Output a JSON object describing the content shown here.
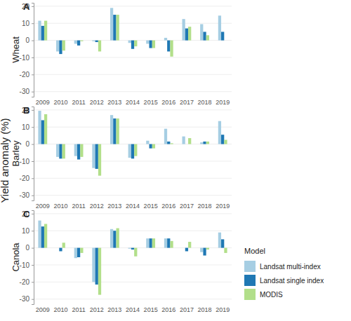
{
  "ylabel": "Yield anomaly (%)",
  "legend_title": "Model",
  "chart_data": [
    {
      "type": "bar",
      "title": "A",
      "ylabel": "Wheat",
      "categories": [
        "2009",
        "2010",
        "2011",
        "2012",
        "2013",
        "2014",
        "2015",
        "2016",
        "2017",
        "2018",
        "2019"
      ],
      "series": [
        {
          "name": "Landsat multi-index",
          "color": "#a6cee3",
          "values": [
            11.5,
            -6.5,
            -2,
            -0.5,
            19,
            -1.5,
            -2,
            1.5,
            12.5,
            9.5,
            14.5
          ]
        },
        {
          "name": "Landsat single index",
          "color": "#1f78b4",
          "values": [
            8.5,
            -8,
            -3,
            -1,
            15,
            -5,
            -4.5,
            -6.5,
            7,
            5,
            5
          ]
        },
        {
          "name": "MODIS",
          "color": "#b2df8a",
          "values": [
            11.5,
            -6,
            -0.5,
            -6.5,
            15,
            -3.5,
            -4.5,
            -9.5,
            8,
            3,
            0
          ]
        }
      ],
      "ylim": [
        -33,
        22
      ],
      "yticks": [
        -30,
        -20,
        -10,
        0,
        10,
        20
      ],
      "grid": true
    },
    {
      "type": "bar",
      "title": "B",
      "ylabel": "Barley",
      "categories": [
        "2009",
        "2010",
        "2011",
        "2012",
        "2013",
        "2014",
        "2015",
        "2016",
        "2017",
        "2018",
        "2019"
      ],
      "series": [
        {
          "name": "Landsat multi-index",
          "color": "#a6cee3",
          "values": [
            19.5,
            -7.5,
            -7,
            -14,
            17,
            -8,
            2,
            9,
            4.5,
            1,
            13.5
          ]
        },
        {
          "name": "Landsat single index",
          "color": "#1f78b4",
          "values": [
            14,
            -8.5,
            -9,
            -14.5,
            15,
            -8.5,
            -2.5,
            1.5,
            0,
            1.5,
            5.5
          ]
        },
        {
          "name": "MODIS",
          "color": "#b2df8a",
          "values": [
            17.5,
            -8.5,
            -7.5,
            -18.5,
            15,
            -7,
            -2.5,
            0.5,
            3.5,
            1.5,
            2.5
          ]
        }
      ],
      "ylim": [
        -33,
        22
      ],
      "yticks": [
        -30,
        -20,
        -10,
        0,
        10,
        20
      ],
      "grid": true
    },
    {
      "type": "bar",
      "title": "C",
      "ylabel": "Canola",
      "categories": [
        "2009",
        "2010",
        "2011",
        "2012",
        "2013",
        "2014",
        "2015",
        "2016",
        "2017",
        "2018",
        "2019"
      ],
      "series": [
        {
          "name": "Landsat multi-index",
          "color": "#a6cee3",
          "values": [
            16,
            0,
            -6,
            -20,
            11,
            -0.5,
            5.5,
            5.5,
            0,
            -2.5,
            9
          ]
        },
        {
          "name": "Landsat single index",
          "color": "#1f78b4",
          "values": [
            12.5,
            -2,
            -5.5,
            -21.5,
            10,
            -1,
            5.5,
            5.5,
            -2,
            -4.5,
            5
          ]
        },
        {
          "name": "MODIS",
          "color": "#b2df8a",
          "values": [
            14,
            3,
            -3,
            -27.5,
            11.5,
            -5,
            5.5,
            4,
            3.5,
            -1,
            -3
          ]
        }
      ],
      "ylim": [
        -33,
        22
      ],
      "yticks": [
        -30,
        -20,
        -10,
        0,
        10,
        20
      ],
      "grid": true,
      "legend": "right"
    }
  ]
}
